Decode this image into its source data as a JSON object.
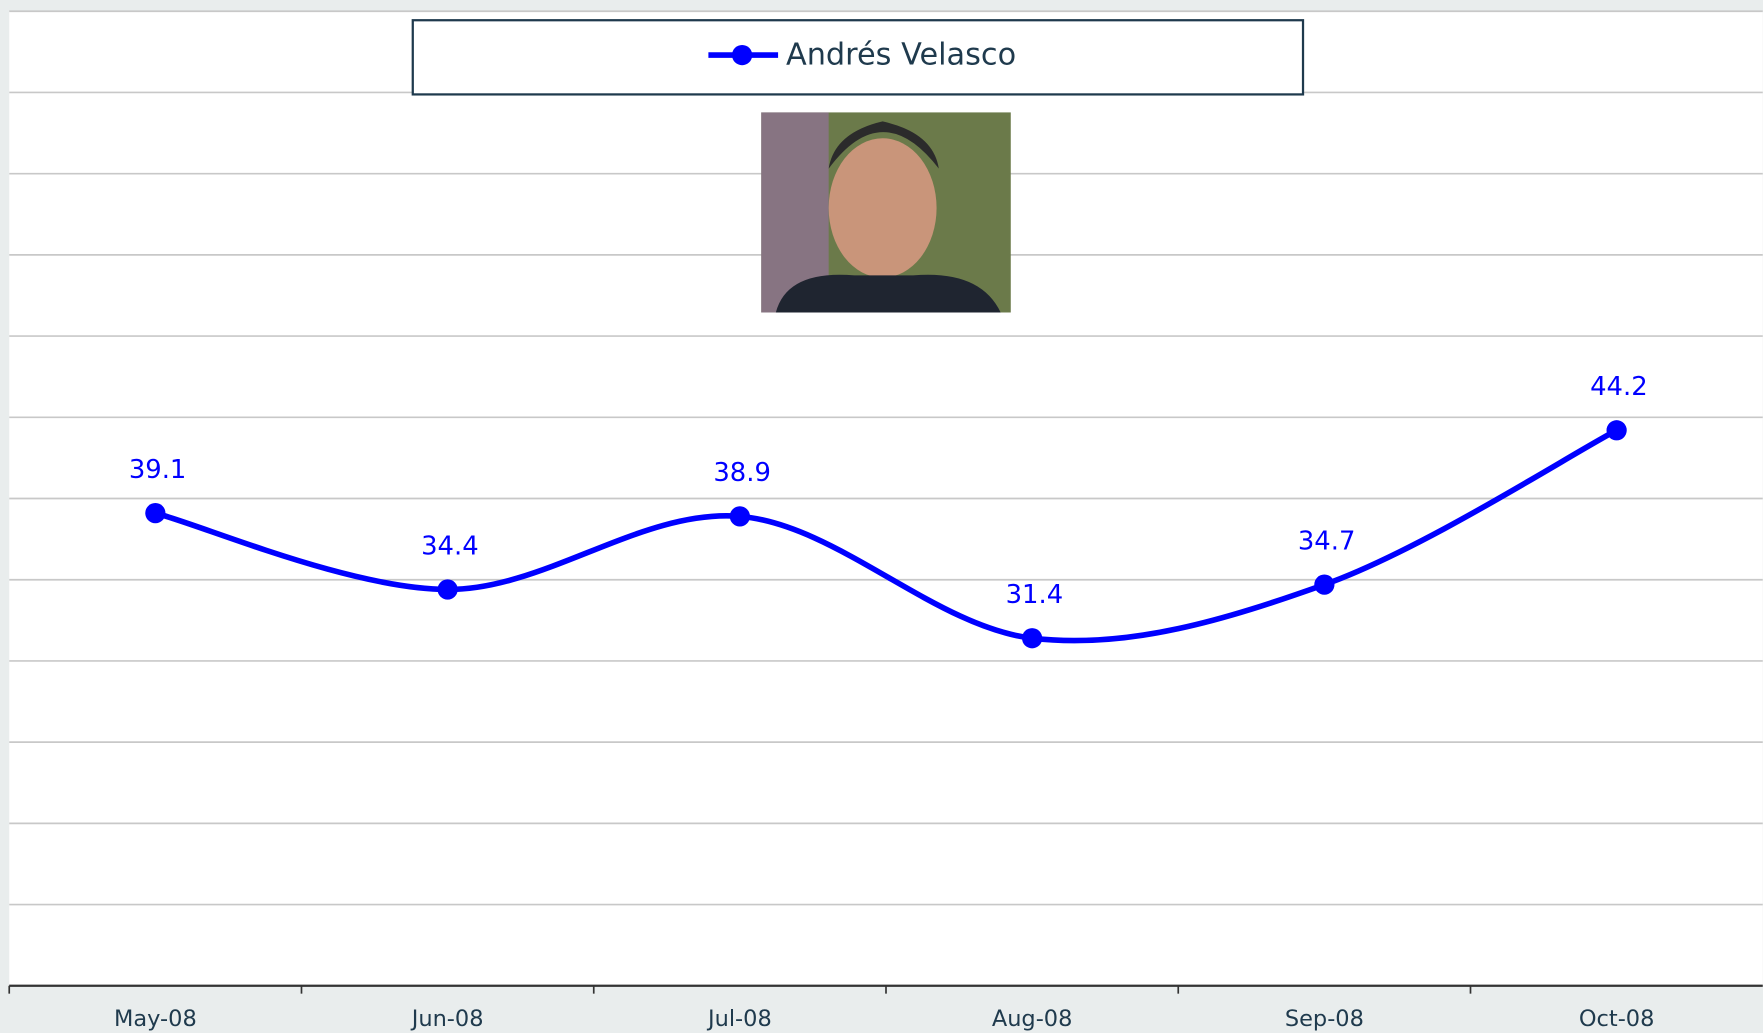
{
  "chart_data": {
    "type": "line",
    "categories": [
      "May-08",
      "Jun-08",
      "Jul-08",
      "Aug-08",
      "Sep-08",
      "Oct-08"
    ],
    "series": [
      {
        "name": "Andrés Velasco",
        "color": "#0000ff",
        "values": [
          39.1,
          34.4,
          38.9,
          31.4,
          34.7,
          44.2
        ]
      }
    ],
    "ylim": [
      10,
      70
    ],
    "yticks": [
      10,
      15,
      20,
      25,
      30,
      35,
      40,
      45,
      50,
      55,
      60,
      65,
      70
    ],
    "grid": true,
    "smooth": true,
    "legend": "top"
  }
}
